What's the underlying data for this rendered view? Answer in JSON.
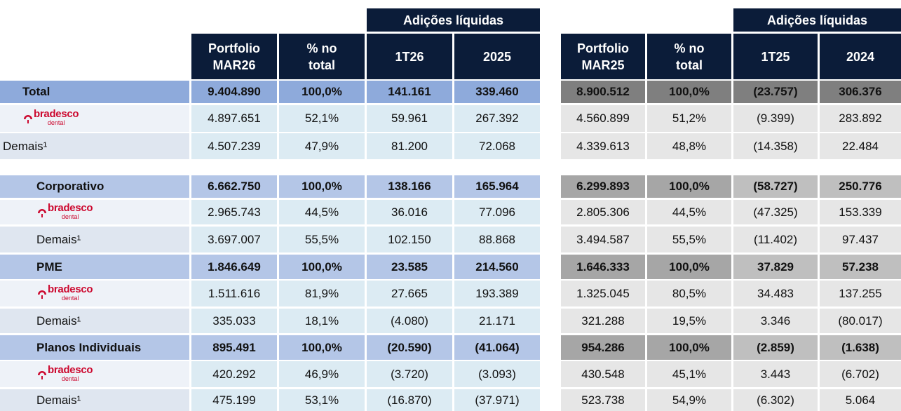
{
  "header": {
    "left": {
      "group": "Adições líquidas",
      "columns": [
        [
          "Portfolio",
          "MAR26"
        ],
        [
          "% no",
          "total"
        ],
        [
          "1T26"
        ],
        [
          "2025"
        ]
      ]
    },
    "right": {
      "group": "Adições líquidas",
      "columns": [
        [
          "Portfolio",
          "MAR25"
        ],
        [
          "% no",
          "total"
        ],
        [
          "1T25"
        ],
        [
          "2024"
        ]
      ]
    }
  },
  "brand_logo": {
    "name": "bradesco",
    "sub": "dental"
  },
  "sections": [
    {
      "rows": [
        {
          "kind": "total",
          "label": "Total",
          "left": [
            "9.404.890",
            "100,0%",
            "141.161",
            "339.460"
          ],
          "right": [
            "8.900.512",
            "100,0%",
            "(23.757)",
            "306.376"
          ]
        },
        {
          "kind": "brand",
          "left": [
            "4.897.651",
            "52,1%",
            "59.961",
            "267.392"
          ],
          "right": [
            "4.560.899",
            "51,2%",
            "(9.399)",
            "283.892"
          ]
        },
        {
          "kind": "other",
          "label": "Demais¹",
          "left": [
            "4.507.239",
            "47,9%",
            "81.200",
            "72.068"
          ],
          "right": [
            "4.339.613",
            "48,8%",
            "(14.358)",
            "22.484"
          ]
        }
      ]
    },
    {
      "rows": [
        {
          "kind": "total",
          "label": "Corporativo",
          "left": [
            "6.662.750",
            "100,0%",
            "138.166",
            "165.964"
          ],
          "right": [
            "6.299.893",
            "100,0%",
            "(58.727)",
            "250.776"
          ]
        },
        {
          "kind": "brand",
          "left": [
            "2.965.743",
            "44,5%",
            "36.016",
            "77.096"
          ],
          "right": [
            "2.805.306",
            "44,5%",
            "(47.325)",
            "153.339"
          ]
        },
        {
          "kind": "other",
          "label": "Demais¹",
          "left": [
            "3.697.007",
            "55,5%",
            "102.150",
            "88.868"
          ],
          "right": [
            "3.494.587",
            "55,5%",
            "(11.402)",
            "97.437"
          ]
        }
      ]
    },
    {
      "rows": [
        {
          "kind": "total",
          "label": "PME",
          "left": [
            "1.846.649",
            "100,0%",
            "23.585",
            "214.560"
          ],
          "right": [
            "1.646.333",
            "100,0%",
            "37.829",
            "57.238"
          ]
        },
        {
          "kind": "brand",
          "left": [
            "1.511.616",
            "81,9%",
            "27.665",
            "193.389"
          ],
          "right": [
            "1.325.045",
            "80,5%",
            "34.483",
            "137.255"
          ]
        },
        {
          "kind": "other",
          "label": "Demais¹",
          "left": [
            "335.033",
            "18,1%",
            "(4.080)",
            "21.171"
          ],
          "right": [
            "321.288",
            "19,5%",
            "3.346",
            "(80.017)"
          ]
        }
      ]
    },
    {
      "rows": [
        {
          "kind": "total",
          "label": "Planos Individuais",
          "left": [
            "895.491",
            "100,0%",
            "(20.590)",
            "(41.064)"
          ],
          "right": [
            "954.286",
            "100,0%",
            "(2.859)",
            "(1.638)"
          ]
        },
        {
          "kind": "brand",
          "left": [
            "420.292",
            "46,9%",
            "(3.720)",
            "(3.093)"
          ],
          "right": [
            "430.548",
            "45,1%",
            "3.443",
            "(6.702)"
          ]
        },
        {
          "kind": "other",
          "label": "Demais¹",
          "left": [
            "475.199",
            "53,1%",
            "(16.870)",
            "(37.971)"
          ],
          "right": [
            "523.738",
            "54,9%",
            "(6.302)",
            "5.064"
          ]
        }
      ]
    }
  ]
}
